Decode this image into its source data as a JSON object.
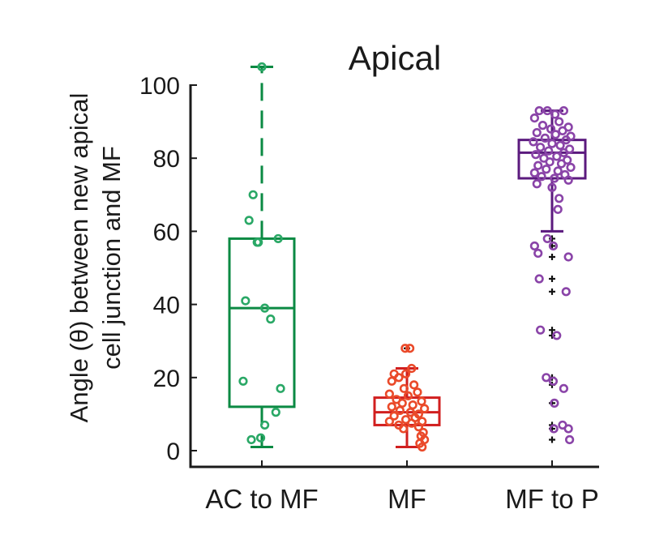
{
  "chart_data": {
    "type": "box",
    "title": "Apical",
    "ylabel_line1": "Angle (θ) between new apical",
    "ylabel_line2": "cell junction and MF",
    "xlabel": "",
    "ylim": [
      -4,
      105
    ],
    "yticks": [
      0,
      20,
      40,
      60,
      80,
      100
    ],
    "categories": [
      "AC to MF",
      "MF",
      "MF to P"
    ],
    "series": [
      {
        "name": "AC to MF",
        "color": "#0b8a43",
        "point_color": "#2aa866",
        "whisker_style": "dashed-upper",
        "box": {
          "q1": 12,
          "median": 39,
          "q3": 58,
          "whisker_low": 1,
          "whisker_high": 105
        },
        "outliers": [],
        "points": [
          {
            "y": 105,
            "jx": 0.0
          },
          {
            "y": 70,
            "jx": -0.15
          },
          {
            "y": 63,
            "jx": -0.22
          },
          {
            "y": 58,
            "jx": 0.28
          },
          {
            "y": 57,
            "jx": -0.08
          },
          {
            "y": 57,
            "jx": -0.06
          },
          {
            "y": 41,
            "jx": -0.28
          },
          {
            "y": 39,
            "jx": 0.05
          },
          {
            "y": 36,
            "jx": 0.15
          },
          {
            "y": 19,
            "jx": -0.32
          },
          {
            "y": 17,
            "jx": 0.32
          },
          {
            "y": 10.5,
            "jx": 0.24
          },
          {
            "y": 7,
            "jx": 0.05
          },
          {
            "y": 3,
            "jx": -0.18
          },
          {
            "y": 3.5,
            "jx": -0.02
          }
        ]
      },
      {
        "name": "MF",
        "color": "#d11f1f",
        "point_color": "#ea4a2a",
        "whisker_style": "solid",
        "box": {
          "q1": 7,
          "median": 10.5,
          "q3": 14.5,
          "whisker_low": 1,
          "whisker_high": 22.5
        },
        "outliers": [
          28
        ],
        "points": [
          {
            "y": 28,
            "jx": -0.03
          },
          {
            "y": 28,
            "jx": 0.05
          },
          {
            "y": 22.5,
            "jx": 0.08
          },
          {
            "y": 21,
            "jx": -0.22
          },
          {
            "y": 21,
            "jx": -0.02
          },
          {
            "y": 20,
            "jx": -0.14
          },
          {
            "y": 19,
            "jx": -0.26
          },
          {
            "y": 18,
            "jx": 0.12
          },
          {
            "y": 17,
            "jx": -0.05
          },
          {
            "y": 16,
            "jx": 0.18
          },
          {
            "y": 15.5,
            "jx": -0.3
          },
          {
            "y": 15,
            "jx": 0.02
          },
          {
            "y": 14,
            "jx": -0.18
          },
          {
            "y": 13.5,
            "jx": 0.25
          },
          {
            "y": 13,
            "jx": -0.08
          },
          {
            "y": 12.5,
            "jx": 0.1
          },
          {
            "y": 12,
            "jx": -0.26
          },
          {
            "y": 11.5,
            "jx": 0.3
          },
          {
            "y": 11,
            "jx": -0.12
          },
          {
            "y": 10.5,
            "jx": 0.06
          },
          {
            "y": 10,
            "jx": 0.2
          },
          {
            "y": 9.5,
            "jx": -0.22
          },
          {
            "y": 9,
            "jx": 0.14
          },
          {
            "y": 8.5,
            "jx": -0.02
          },
          {
            "y": 8,
            "jx": -0.3
          },
          {
            "y": 8,
            "jx": 0.26
          },
          {
            "y": 7.5,
            "jx": 0.08
          },
          {
            "y": 7,
            "jx": -0.14
          },
          {
            "y": 6.5,
            "jx": 0.2
          },
          {
            "y": 6,
            "jx": -0.06
          },
          {
            "y": 5,
            "jx": 0.28
          },
          {
            "y": 4,
            "jx": 0.24
          },
          {
            "y": 3,
            "jx": 0.3
          },
          {
            "y": 2,
            "jx": 0.22
          },
          {
            "y": 1,
            "jx": 0.26
          }
        ]
      },
      {
        "name": "MF to P",
        "color": "#5b1a7e",
        "point_color": "#8a44a8",
        "whisker_style": "solid",
        "box": {
          "q1": 74.5,
          "median": 81.5,
          "q3": 85,
          "whisker_low": 60,
          "whisker_high": 93
        },
        "outliers": [
          58,
          56,
          53,
          47,
          43.5,
          33,
          31.5,
          20,
          18,
          13,
          7,
          6,
          3
        ],
        "points": [
          {
            "y": 93,
            "jx": -0.22
          },
          {
            "y": 93,
            "jx": -0.08
          },
          {
            "y": 93,
            "jx": 0.2
          },
          {
            "y": 92,
            "jx": 0.05
          },
          {
            "y": 91,
            "jx": -0.3
          },
          {
            "y": 90,
            "jx": 0.12
          },
          {
            "y": 89,
            "jx": -0.16
          },
          {
            "y": 88.5,
            "jx": 0.28
          },
          {
            "y": 88,
            "jx": -0.02
          },
          {
            "y": 87.5,
            "jx": 0.18
          },
          {
            "y": 87,
            "jx": -0.26
          },
          {
            "y": 86.5,
            "jx": 0.06
          },
          {
            "y": 86,
            "jx": 0.32
          },
          {
            "y": 85.5,
            "jx": -0.12
          },
          {
            "y": 85,
            "jx": 0.24
          },
          {
            "y": 84.5,
            "jx": -0.32
          },
          {
            "y": 84,
            "jx": 0.0
          },
          {
            "y": 83.5,
            "jx": 0.14
          },
          {
            "y": 83,
            "jx": -0.2
          },
          {
            "y": 82.5,
            "jx": 0.3
          },
          {
            "y": 82,
            "jx": -0.06
          },
          {
            "y": 81.5,
            "jx": 0.2
          },
          {
            "y": 81,
            "jx": -0.28
          },
          {
            "y": 80.5,
            "jx": 0.08
          },
          {
            "y": 80,
            "jx": -0.14
          },
          {
            "y": 79.5,
            "jx": 0.26
          },
          {
            "y": 79,
            "jx": -0.04
          },
          {
            "y": 78.5,
            "jx": 0.16
          },
          {
            "y": 78,
            "jx": -0.24
          },
          {
            "y": 77.5,
            "jx": 0.32
          },
          {
            "y": 77,
            "jx": -0.1
          },
          {
            "y": 76.5,
            "jx": 0.1
          },
          {
            "y": 76,
            "jx": -0.3
          },
          {
            "y": 75.5,
            "jx": 0.22
          },
          {
            "y": 75,
            "jx": -0.18
          },
          {
            "y": 74.5,
            "jx": 0.04
          },
          {
            "y": 74,
            "jx": 0.28
          },
          {
            "y": 73,
            "jx": -0.26
          },
          {
            "y": 72,
            "jx": 0.0
          },
          {
            "y": 69,
            "jx": 0.12
          },
          {
            "y": 66,
            "jx": 0.1
          },
          {
            "y": 58,
            "jx": -0.08
          },
          {
            "y": 56,
            "jx": 0.02
          },
          {
            "y": 56,
            "jx": -0.3
          },
          {
            "y": 54,
            "jx": -0.24
          },
          {
            "y": 53,
            "jx": 0.28
          },
          {
            "y": 47,
            "jx": -0.22
          },
          {
            "y": 43.5,
            "jx": 0.24
          },
          {
            "y": 33,
            "jx": -0.2
          },
          {
            "y": 31.5,
            "jx": 0.08
          },
          {
            "y": 20,
            "jx": -0.1
          },
          {
            "y": 19,
            "jx": 0.02
          },
          {
            "y": 17,
            "jx": 0.2
          },
          {
            "y": 13,
            "jx": 0.04
          },
          {
            "y": 7,
            "jx": 0.18
          },
          {
            "y": 6,
            "jx": 0.28
          },
          {
            "y": 6,
            "jx": 0.03
          },
          {
            "y": 3,
            "jx": 0.3
          }
        ]
      }
    ]
  }
}
